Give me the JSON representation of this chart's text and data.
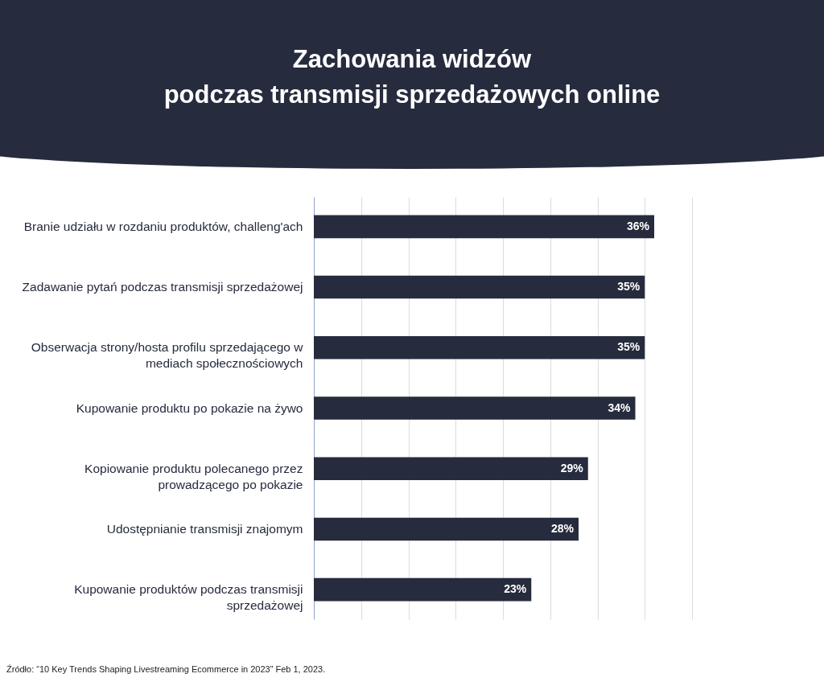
{
  "chart_data": {
    "type": "bar",
    "orientation": "horizontal",
    "title": "Zachowania widzów\npodczas transmisji sprzedażowych online",
    "categories": [
      "Branie udziału w rozdaniu produktów, challeng'ach",
      "Zadawanie pytań podczas transmisji sprzedażowej",
      "Obserwacja strony/hosta profilu sprzedającego w\nmediach społecznościowych",
      "Kupowanie produktu po pokazie na żywo",
      "Kopiowanie produktu polecanego przez\nprowadzącego po pokazie",
      "Udostępnianie transmisji znajomym",
      "Kupowanie produktów podczas transmisji\nsprzedażowej"
    ],
    "values": [
      36,
      35,
      35,
      34,
      29,
      28,
      23
    ],
    "value_labels": [
      "36%",
      "35%",
      "35%",
      "34%",
      "29%",
      "28%",
      "23%"
    ],
    "color": "#262b3d",
    "xlim": [
      0,
      40
    ],
    "xticks": [
      0,
      5,
      10,
      15,
      20,
      25,
      30,
      35,
      40
    ],
    "grid": "x",
    "tick_labels": "y",
    "annotations": [
      "Źródło: “10 Key Trends Shaping Livestreaming Ecommerce in 2023” Feb 1, 2023."
    ]
  }
}
